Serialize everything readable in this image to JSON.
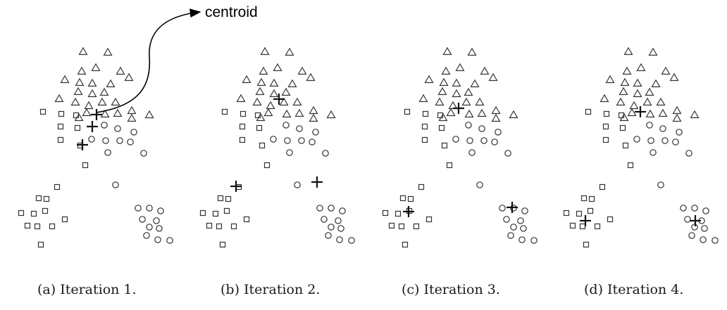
{
  "annotation": {
    "label": "centroid"
  },
  "panels": [
    {
      "caption": "(a) Iteration 1."
    },
    {
      "caption": "(b) Iteration 2."
    },
    {
      "caption": "(c) Iteration 3."
    },
    {
      "caption": "(d) Iteration 4."
    }
  ],
  "colors": {
    "points": "#333333",
    "centroid": "#111111",
    "text": "#000000"
  }
}
